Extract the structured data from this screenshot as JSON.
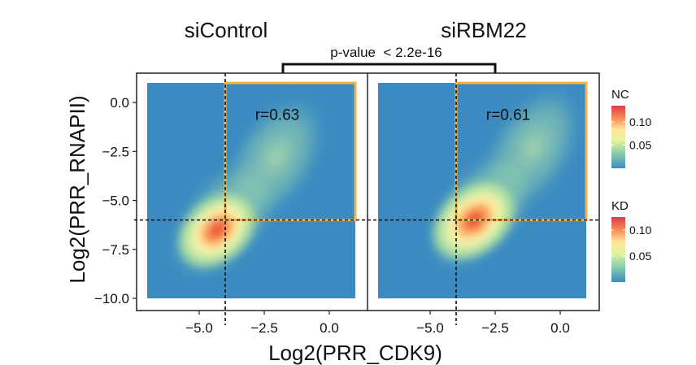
{
  "chart_data": {
    "type": "heatmap",
    "xlabel": "Log2(PRR_CDK9)",
    "ylabel": "Log2(PRR_RNAPII)",
    "xlim": [
      -7,
      1
    ],
    "ylim": [
      -10,
      1
    ],
    "x_ticks": [
      -5.0,
      -2.5,
      0.0
    ],
    "x_tick_labels": [
      "−5.0",
      "−2.5",
      "0.0"
    ],
    "y_ticks": [
      0.0,
      -2.5,
      -5.0,
      -7.5,
      -10.0
    ],
    "y_tick_labels": [
      "0.0",
      "−2.5",
      "−5.0",
      "−7.5",
      "−10.0"
    ],
    "threshold_x": -4,
    "threshold_y": -6,
    "highlight_box": {
      "x": [
        -4,
        1
      ],
      "y": [
        -6,
        1
      ],
      "color": "#f0b44a"
    },
    "significance": "p-value  < 2.2e-16",
    "panels": [
      {
        "title": "siControl",
        "correlation": "r=0.63",
        "density_peak": {
          "x": -4.3,
          "y": -6.5
        }
      },
      {
        "title": "siRBM22",
        "correlation": "r=0.61",
        "density_peak": {
          "x": -3.3,
          "y": -6.0
        }
      }
    ],
    "legends": [
      {
        "title": "NC",
        "ticks": [
          "0.10",
          "0.05"
        ],
        "tick_values": [
          0.1,
          0.05
        ],
        "range": [
          0.0,
          0.135
        ]
      },
      {
        "title": "KD",
        "ticks": [
          "0.10",
          "0.05"
        ],
        "tick_values": [
          0.1,
          0.05
        ],
        "range": [
          0.0,
          0.125
        ]
      }
    ],
    "colors": [
      "#3b8bc2",
      "#6cc3a5",
      "#e8f4a0",
      "#fee59a",
      "#f88d52",
      "#d53e4f"
    ],
    "grid": false
  }
}
